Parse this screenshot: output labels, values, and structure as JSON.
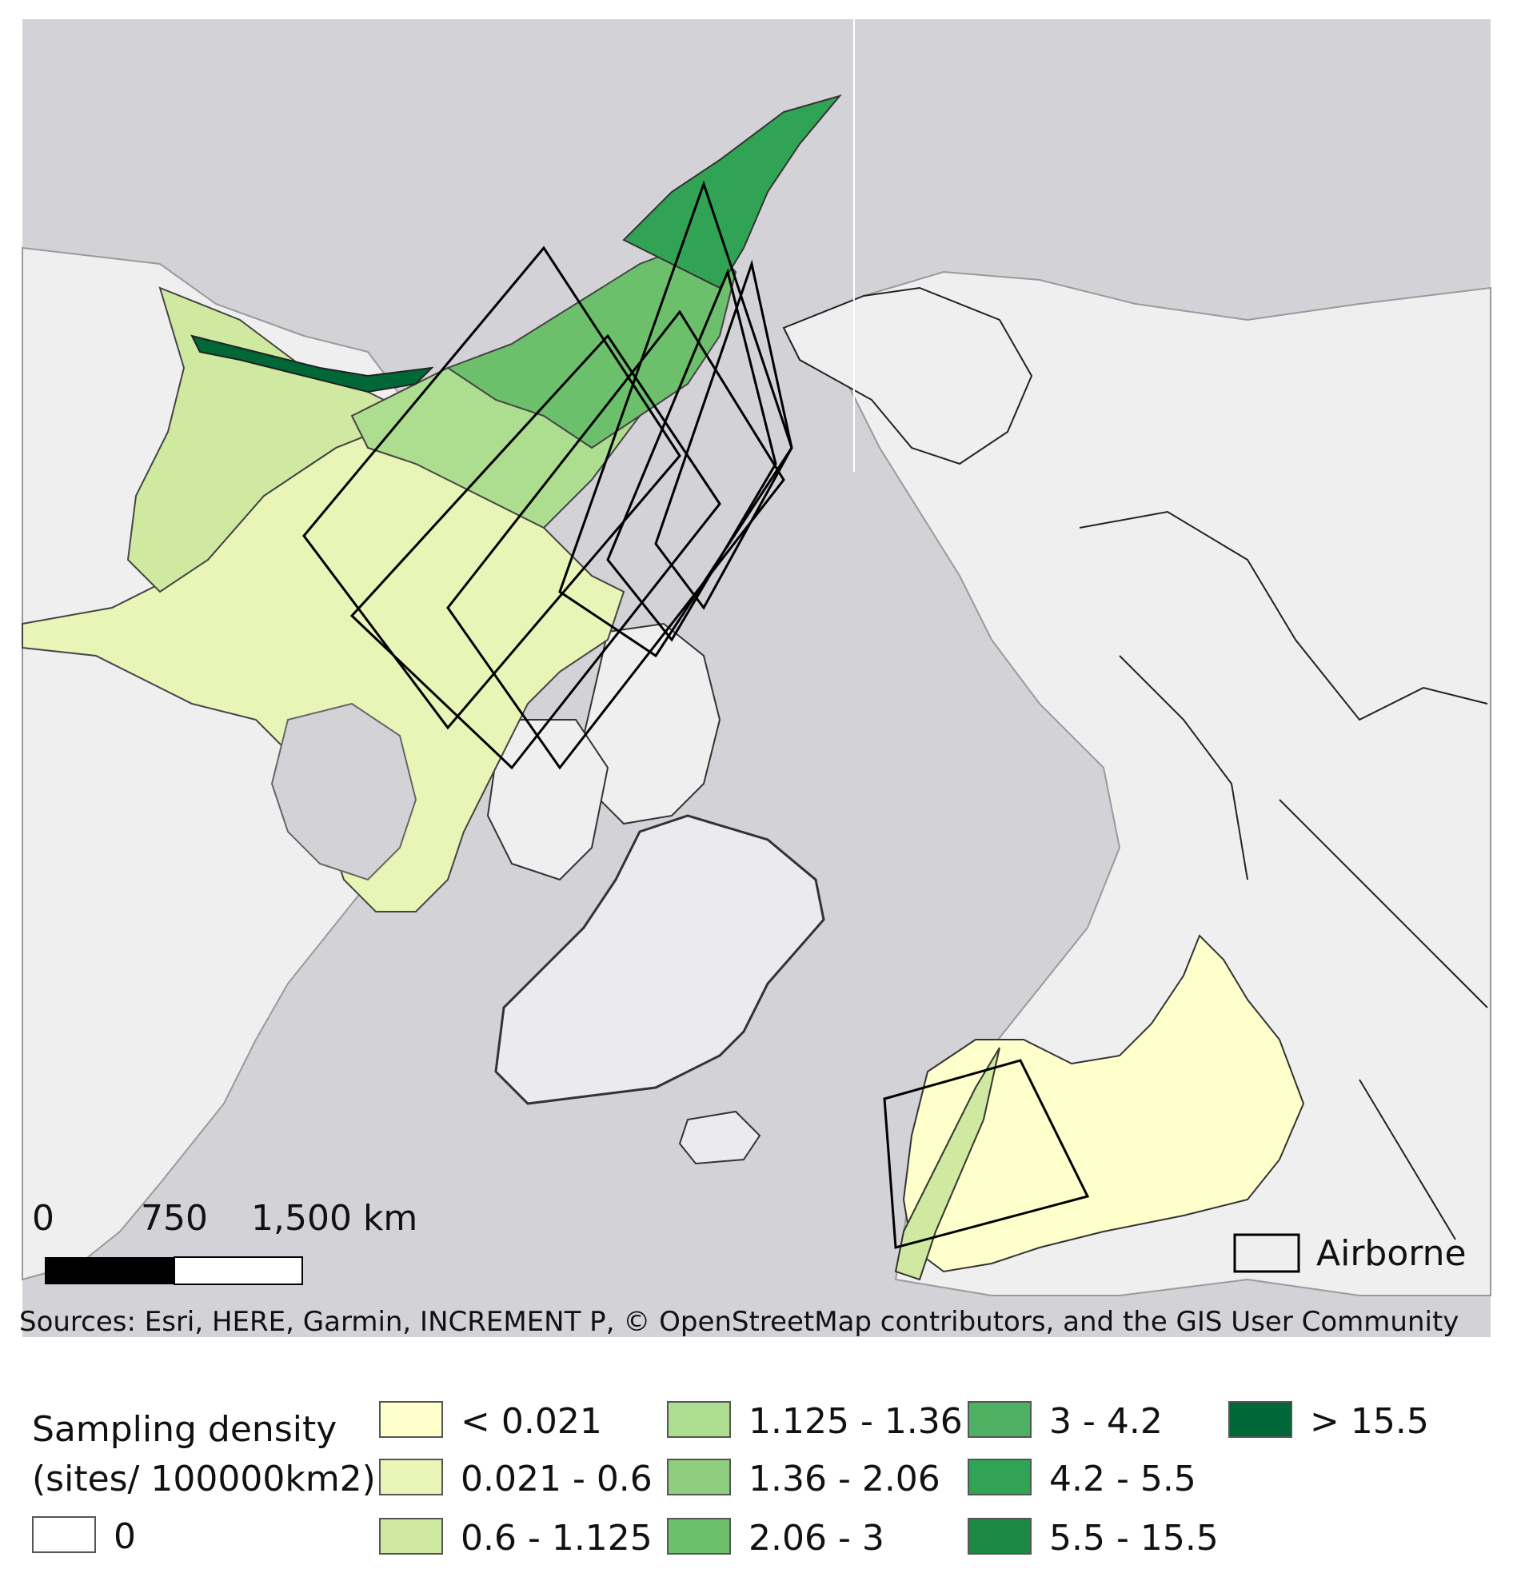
{
  "scale_bar": {
    "labels": [
      "0",
      "750",
      "1,500 km"
    ]
  },
  "map_legend": {
    "airborne_label": "Airborne"
  },
  "attribution": "Sources: Esri, HERE, Garmin, INCREMENT P, © OpenStreetMap contributors, and the GIS User Community",
  "legend": {
    "title_line1": "Sampling density",
    "title_line2": "(sites/ 100000km2)",
    "zero_label": "0",
    "classes": [
      {
        "label": "< 0.021",
        "color": "#ffffcc"
      },
      {
        "label": "0.021 - 0.6",
        "color": "#e8f5b7"
      },
      {
        "label": "0.6 - 1.125",
        "color": "#cfeaa0"
      },
      {
        "label": "1.125 - 1.36",
        "color": "#addd8e"
      },
      {
        "label": "1.36 - 2.06",
        "color": "#8fce7e"
      },
      {
        "label": "2.06 - 3",
        "color": "#6cc06c"
      },
      {
        "label": "3 - 4.2",
        "color": "#4eb062"
      },
      {
        "label": "4.2 - 5.5",
        "color": "#31a354"
      },
      {
        "label": "5.5 - 15.5",
        "color": "#1c8a45"
      },
      {
        "label": "> 15.5",
        "color": "#006837"
      }
    ]
  },
  "colors": {
    "ocean": "#d3d3d7",
    "land": "#f1f1f1",
    "border": "#222222",
    "airborne_box": "#000000"
  }
}
